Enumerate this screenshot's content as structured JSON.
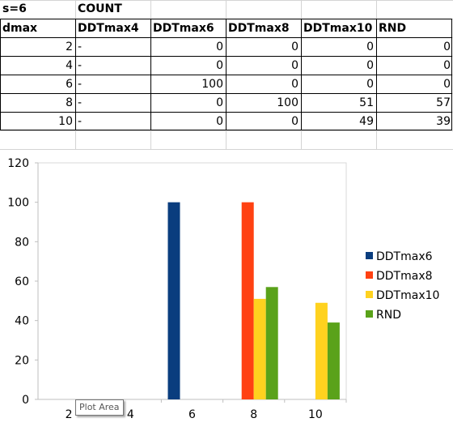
{
  "sheet": {
    "row1": {
      "a": "s=6",
      "b": "COUNT"
    },
    "headers": [
      "dmax",
      "DDTmax4",
      "DDTmax6",
      "DDTmax8",
      "DDTmax10",
      "RND"
    ],
    "rows": [
      [
        "2",
        "-",
        "0",
        "0",
        "0",
        "0"
      ],
      [
        "4",
        "-",
        "0",
        "0",
        "0",
        "0"
      ],
      [
        "6",
        "-",
        "100",
        "0",
        "0",
        "0"
      ],
      [
        "8",
        "-",
        "0",
        "100",
        "51",
        "57"
      ],
      [
        "10",
        "-",
        "0",
        "0",
        "49",
        "39"
      ]
    ]
  },
  "chart_data": {
    "type": "bar",
    "categories": [
      "2",
      "4",
      "6",
      "8",
      "10"
    ],
    "series": [
      {
        "name": "DDTmax6",
        "values": [
          0,
          0,
          100,
          0,
          0
        ],
        "color": "#0a3d7e"
      },
      {
        "name": "DDTmax8",
        "values": [
          0,
          0,
          0,
          100,
          0
        ],
        "color": "#ff4112"
      },
      {
        "name": "DDTmax10",
        "values": [
          0,
          0,
          0,
          51,
          49
        ],
        "color": "#ffd21f"
      },
      {
        "name": "RND",
        "values": [
          0,
          0,
          0,
          57,
          39
        ],
        "color": "#5aa21a"
      }
    ],
    "ylim": [
      0,
      120
    ],
    "yticks": [
      0,
      20,
      40,
      60,
      80,
      100,
      120
    ],
    "grid": false,
    "legend": "right"
  },
  "tooltip": {
    "text": "Plot Area"
  }
}
